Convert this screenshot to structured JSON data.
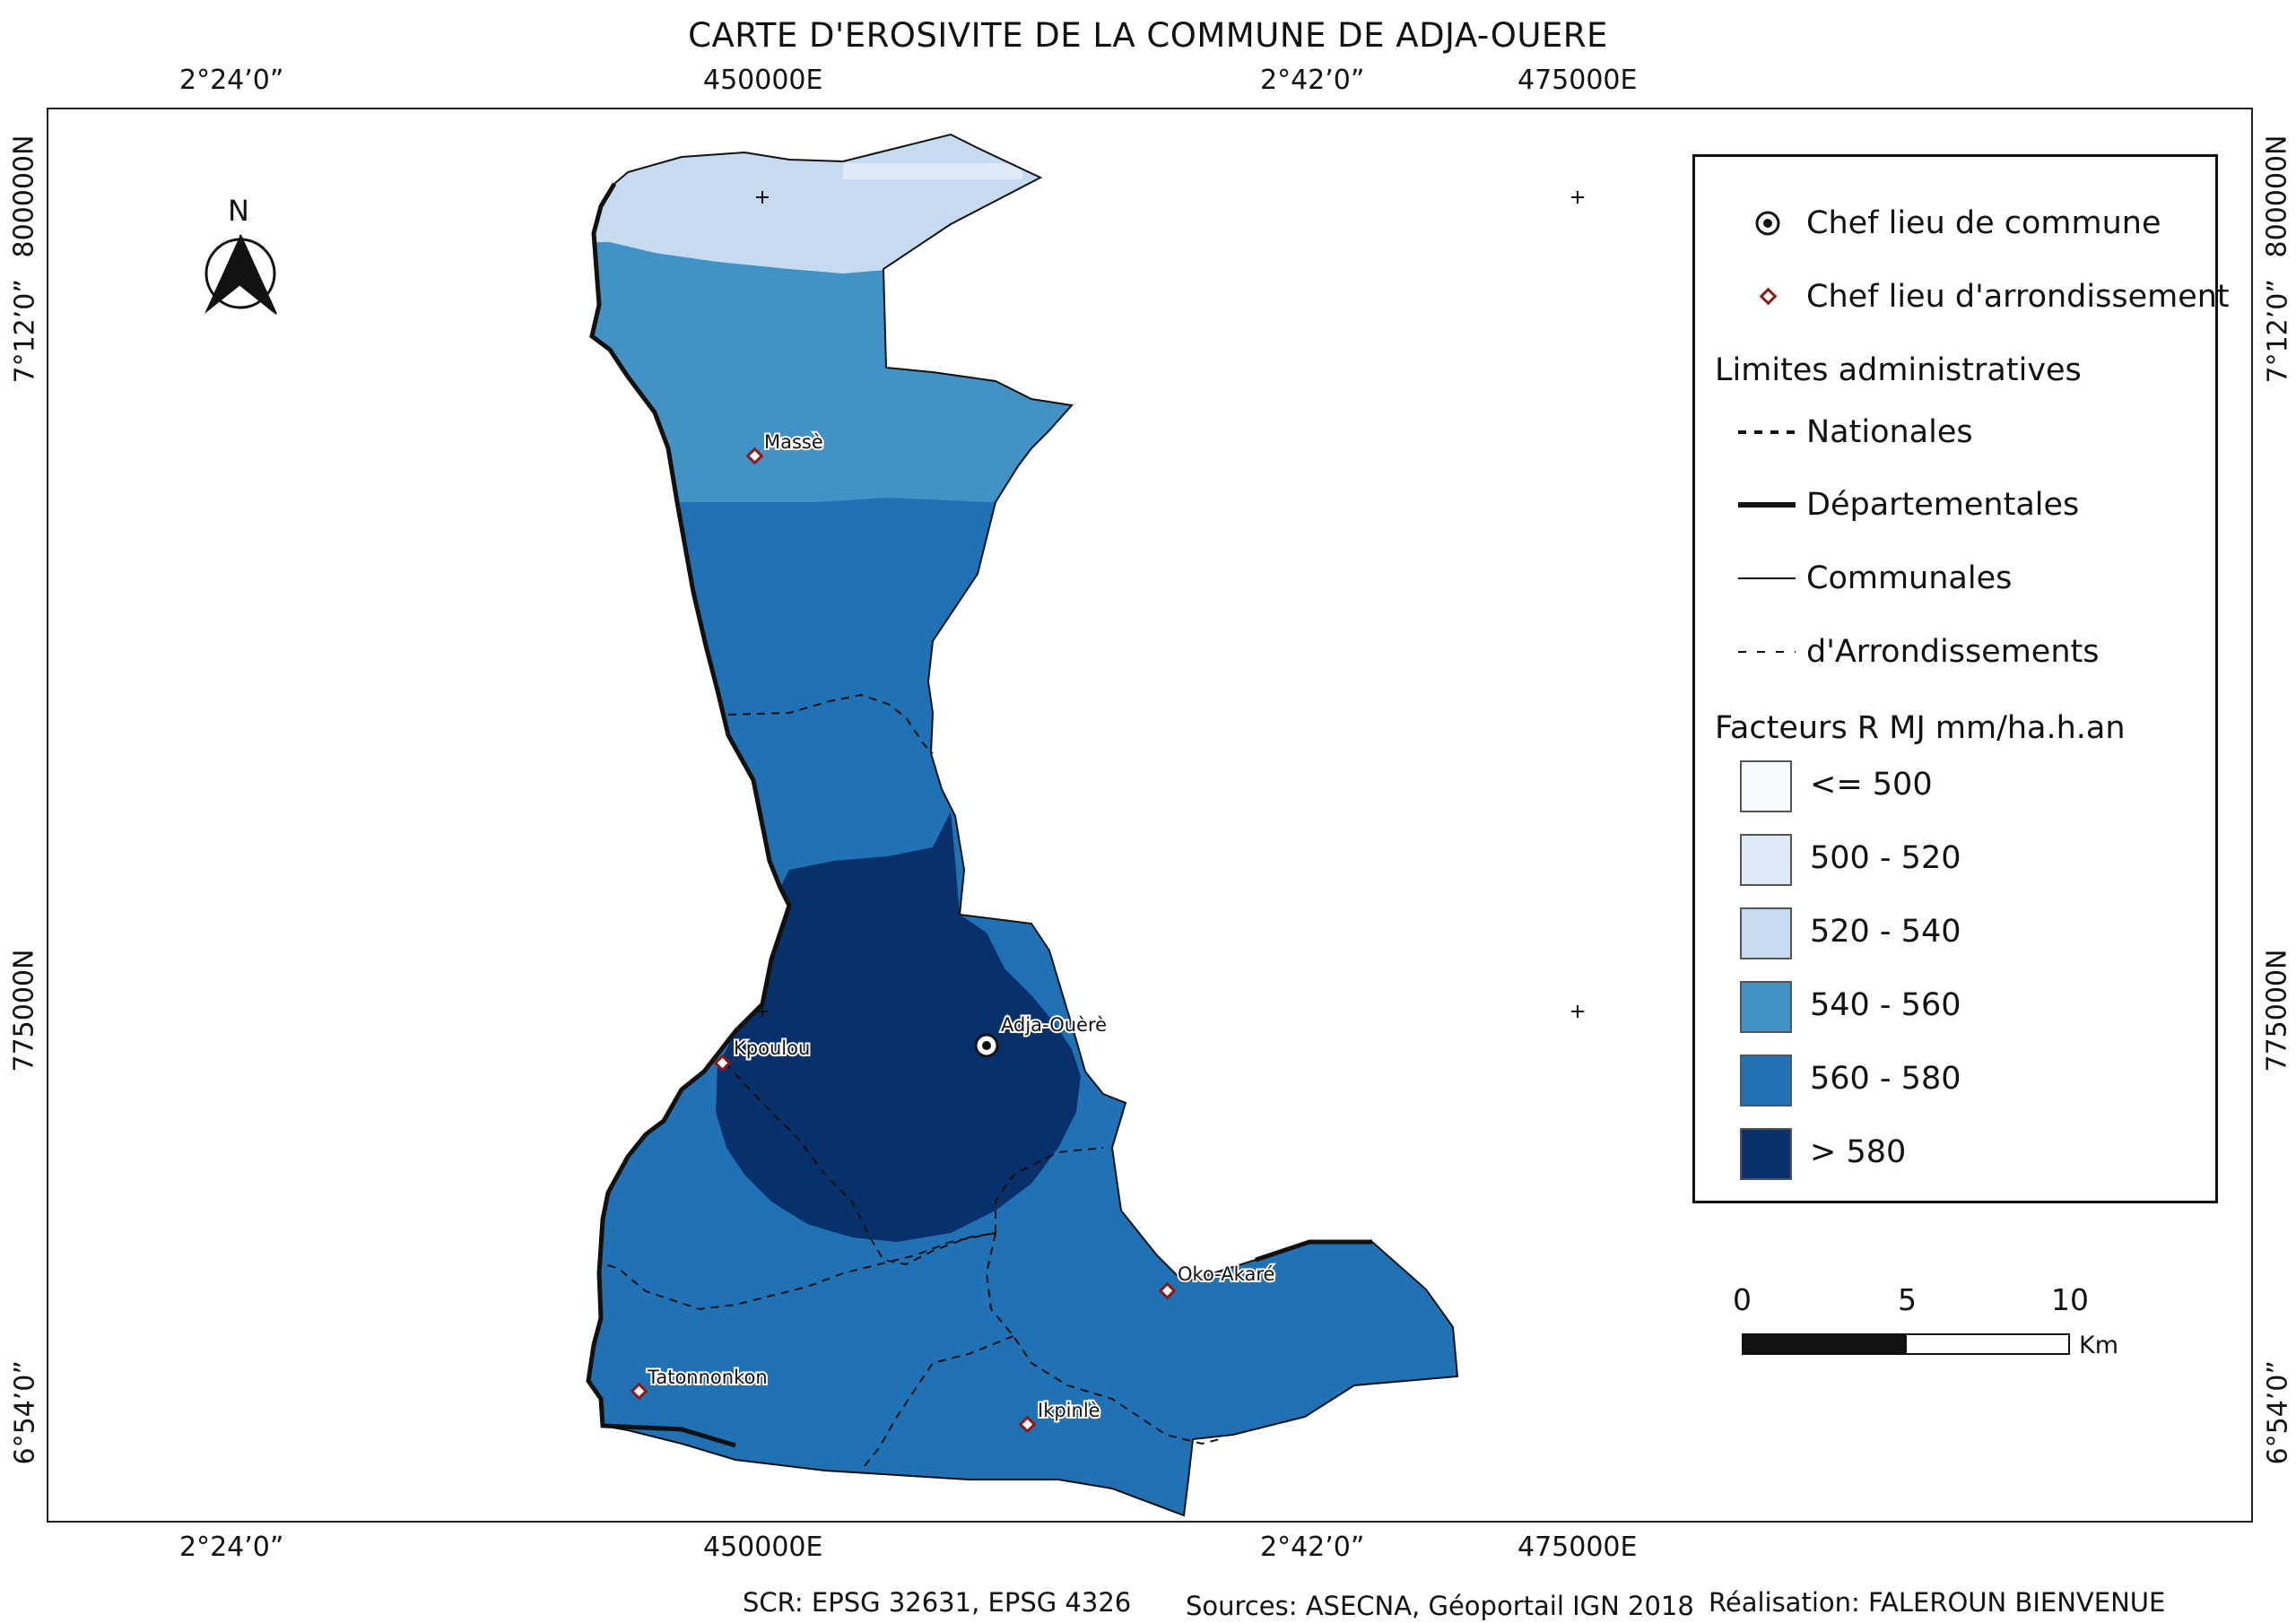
{
  "title": "CARTE D'EROSIVITE DE LA COMMUNE DE ADJA-OUERE",
  "grid_labels": {
    "top": [
      "2°24’0”",
      "450000E",
      "2°42’0”",
      "475000E"
    ],
    "bottom": [
      "2°24’0”",
      "450000E",
      "2°42’0”",
      "475000E"
    ],
    "left": [
      "800000N",
      "7°12’0”",
      "775000N",
      "6°54’0”"
    ],
    "right": [
      "800000N",
      "7°12’0”",
      "775000N",
      "6°54’0”"
    ]
  },
  "north_arrow": {
    "label": "N",
    "icon": "north-arrow-icon"
  },
  "places": {
    "chef_lieu_commune": "Adja-Ouèrè",
    "arrondissements": [
      "Massè",
      "Kpoulou",
      "Oko-Akaré",
      "Tatonnonkon",
      "Ikpinlè"
    ]
  },
  "legend": {
    "chef_lieu_commune": "Chef lieu de commune",
    "chef_lieu_arrondissement": "Chef lieu d'arrondissement",
    "limites_title": "Limites administratives",
    "limites": [
      "Nationales",
      "Départementales",
      "Communales",
      "d'Arrondissements"
    ],
    "factor_title": "Facteurs R MJ mm/ha.h.an",
    "classes": [
      {
        "label": "<= 500",
        "color": "#f7fbff"
      },
      {
        "label": "500 - 520",
        "color": "#deebf7"
      },
      {
        "label": "520 - 540",
        "color": "#c6dbef"
      },
      {
        "label": "540 - 560",
        "color": "#4292c6"
      },
      {
        "label": "560 - 580",
        "color": "#2171b5"
      },
      {
        "label": "> 580",
        "color": "#08306b"
      }
    ]
  },
  "scale_bar": {
    "ticks": [
      "0",
      "5",
      "10"
    ],
    "unit": "Km"
  },
  "footer": {
    "scr": "SCR: EPSG 32631, EPSG 4326",
    "sources": "Sources: ASECNA, Géoportail IGN 2018",
    "realisation": "Réalisation: FALEROUN BIENVENUE"
  }
}
